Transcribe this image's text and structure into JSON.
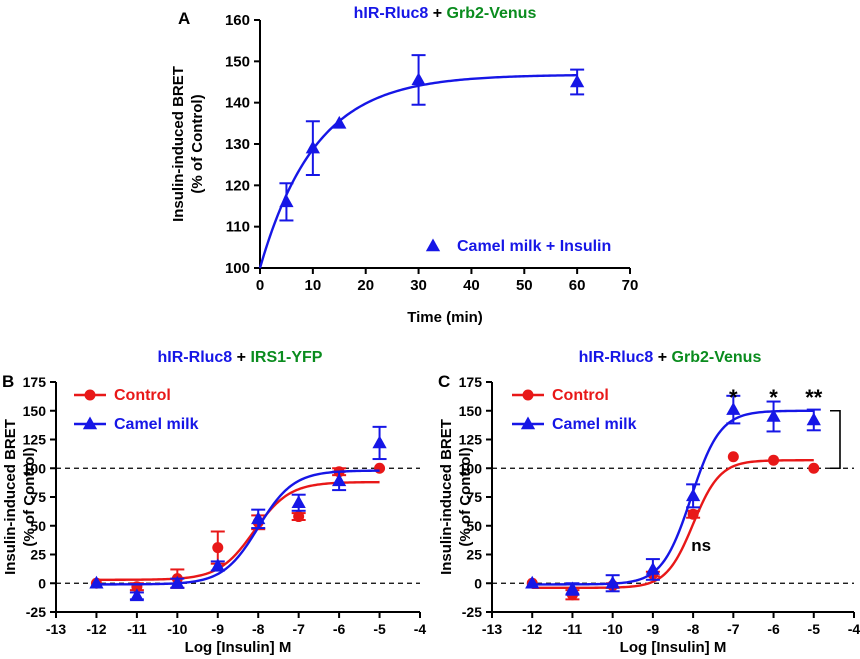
{
  "colors": {
    "blue": "#1616e6",
    "red": "#e81818",
    "green": "#0a8c1e",
    "black": "#000000"
  },
  "chart_data": [
    {
      "panel_label": "A",
      "type": "scatter",
      "title_parts": [
        "hIR-Rluc8",
        " + ",
        "Grb2-Venus"
      ],
      "xlabel": "Time (min)",
      "ylabel_lines": [
        "Insulin-induced BRET",
        "(% of Control)"
      ],
      "xlim": [
        0,
        70
      ],
      "ylim": [
        100,
        160
      ],
      "xticks": [
        0,
        10,
        20,
        30,
        40,
        50,
        60,
        70
      ],
      "yticks": [
        100,
        110,
        120,
        130,
        140,
        150,
        160
      ],
      "series": [
        {
          "name": "Camel milk + Insulin",
          "marker": "triangle",
          "color_key": "blue",
          "x": [
            5,
            10,
            15,
            30,
            60
          ],
          "y": [
            116,
            129,
            135,
            145.5,
            145
          ],
          "err": [
            4.5,
            6.5,
            0,
            6,
            3
          ],
          "fit": {
            "kind": "exp",
            "plateau": 146.8,
            "rate": 0.095,
            "start": 100
          }
        }
      ],
      "legend": "bottom-right"
    },
    {
      "panel_label": "B",
      "type": "scatter",
      "title_parts": [
        "hIR-Rluc8",
        " + ",
        "IRS1-YFP"
      ],
      "xlabel": "Log [Insulin] M",
      "ylabel_lines": [
        "Insulin-induced BRET",
        "(% of Control)"
      ],
      "xlim": [
        -13,
        -4
      ],
      "ylim": [
        -25,
        175
      ],
      "xticks": [
        -13,
        -12,
        -11,
        -10,
        -9,
        -8,
        -7,
        -6,
        -5,
        -4
      ],
      "yticks": [
        -25,
        0,
        25,
        50,
        75,
        100,
        125,
        150,
        175
      ],
      "reference_lines": [
        0,
        100
      ],
      "series": [
        {
          "name": "Control",
          "marker": "circle",
          "color_key": "red",
          "x": [
            -12,
            -11,
            -10,
            -9,
            -8,
            -7,
            -6,
            -5
          ],
          "y": [
            0,
            -3,
            4,
            31,
            53,
            58,
            97,
            100
          ],
          "err": [
            0,
            3,
            8,
            14,
            6,
            3,
            3,
            0
          ],
          "fit": {
            "kind": "sigmoid",
            "bottom": 3,
            "top": 88,
            "logEC50": -8.1,
            "hill": 1.0
          }
        },
        {
          "name": "Camel milk",
          "marker": "triangle",
          "color_key": "blue",
          "x": [
            -12,
            -11,
            -10,
            -9,
            -8,
            -7,
            -6,
            -5
          ],
          "y": [
            0,
            -11,
            0,
            15,
            56,
            70,
            89,
            122
          ],
          "err": [
            0,
            3,
            4,
            4,
            8,
            7,
            8,
            14
          ],
          "fit": {
            "kind": "sigmoid",
            "bottom": -1,
            "top": 98,
            "logEC50": -8.0,
            "hill": 1.0
          }
        }
      ],
      "legend": "top-left"
    },
    {
      "panel_label": "C",
      "type": "scatter",
      "title_parts": [
        "hIR-Rluc8",
        " + ",
        "Grb2-Venus"
      ],
      "xlabel": "Log [Insulin] M",
      "ylabel_lines": [
        "Insulin-induced BRET",
        "(% of Control)"
      ],
      "xlim": [
        -13,
        -4
      ],
      "ylim": [
        -25,
        175
      ],
      "xticks": [
        -13,
        -12,
        -11,
        -10,
        -9,
        -8,
        -7,
        -6,
        -5,
        -4
      ],
      "yticks": [
        -25,
        0,
        25,
        50,
        75,
        100,
        125,
        150,
        175
      ],
      "reference_lines": [
        0,
        100
      ],
      "series": [
        {
          "name": "Control",
          "marker": "circle",
          "color_key": "red",
          "x": [
            -12,
            -11,
            -10,
            -9,
            -8,
            -7,
            -6,
            -5
          ],
          "y": [
            0,
            -10,
            -2,
            8,
            60,
            110,
            107,
            100
          ],
          "err": [
            0,
            4,
            2,
            2,
            3,
            0,
            0,
            0
          ],
          "fit": {
            "kind": "sigmoid",
            "bottom": -4,
            "top": 107,
            "logEC50": -8.0,
            "hill": 1.3
          }
        },
        {
          "name": "Camel milk",
          "marker": "triangle",
          "color_key": "blue",
          "x": [
            -12,
            -11,
            -10,
            -9,
            -8,
            -7,
            -6,
            -5
          ],
          "y": [
            0,
            -5,
            0,
            12,
            76,
            151,
            145,
            142
          ],
          "err": [
            0,
            5,
            7,
            9,
            10,
            12,
            13,
            9
          ],
          "fit": {
            "kind": "sigmoid",
            "bottom": -1,
            "top": 150,
            "logEC50": -8.05,
            "hill": 1.2
          }
        }
      ],
      "annotations": [
        {
          "text": "*",
          "x": -7,
          "y": 162
        },
        {
          "text": "*",
          "x": -6,
          "y": 162
        },
        {
          "text": "**",
          "x": -5,
          "y": 162
        },
        {
          "text": "ns",
          "x": -7.8,
          "y": 28
        }
      ],
      "legend": "top-left"
    }
  ]
}
